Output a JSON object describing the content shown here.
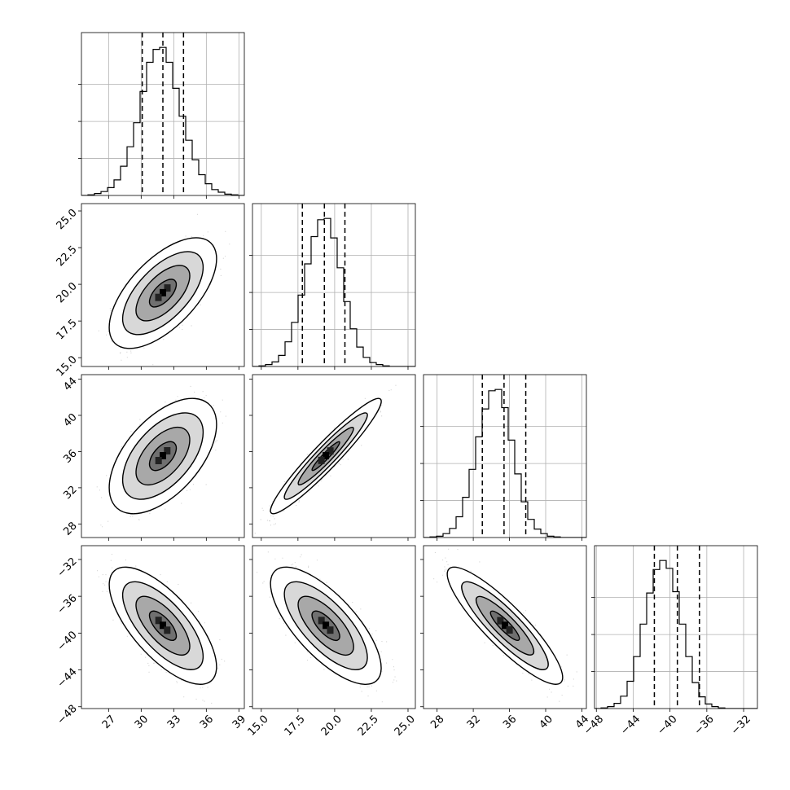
{
  "chart_data": {
    "type": "corner",
    "grid": true,
    "parameters": [
      {
        "ticks": [
          27,
          30,
          33,
          36,
          39
        ],
        "tick_labels": [
          "27",
          "30",
          "33",
          "36",
          "39"
        ],
        "range": [
          24.5,
          39.5
        ],
        "quantiles": [
          30.1,
          32.0,
          33.9
        ]
      },
      {
        "ticks": [
          15.0,
          17.5,
          20.0,
          22.5,
          25.0
        ],
        "tick_labels": [
          "15.0",
          "17.5",
          "20.0",
          "22.5",
          "25.0"
        ],
        "range": [
          14.4,
          25.5
        ],
        "quantiles": [
          17.8,
          19.3,
          20.7
        ]
      },
      {
        "ticks": [
          28,
          32,
          36,
          40,
          44
        ],
        "tick_labels": [
          "28",
          "32",
          "36",
          "40",
          "44"
        ],
        "range": [
          26.5,
          44.5
        ],
        "quantiles": [
          33.0,
          35.4,
          37.8
        ]
      },
      {
        "ticks": [
          -48,
          -44,
          -40,
          -36,
          -32
        ],
        "tick_labels": [
          "−48",
          "−44",
          "−40",
          "−36",
          "−32"
        ],
        "range": [
          -48.2,
          -30.5
        ],
        "quantiles": [
          -41.7,
          -39.2,
          -36.8
        ]
      }
    ],
    "histograms": [
      {
        "edges": [
          24.5,
          39.5
        ],
        "counts": [
          0,
          1,
          3,
          6,
          12,
          24,
          45,
          75,
          112,
          160,
          205,
          225,
          228,
          205,
          165,
          122,
          85,
          55,
          32,
          18,
          9,
          5,
          2,
          1,
          0
        ]
      },
      {
        "edges": [
          14.4,
          25.5
        ],
        "counts": [
          0,
          1,
          3,
          7,
          17,
          38,
          68,
          110,
          158,
          200,
          226,
          228,
          198,
          152,
          100,
          58,
          30,
          14,
          6,
          3,
          1,
          0,
          0,
          0,
          0
        ]
      },
      {
        "edges": [
          26.5,
          44.5
        ],
        "counts": [
          0,
          1,
          2,
          6,
          14,
          32,
          62,
          105,
          155,
          198,
          226,
          228,
          200,
          150,
          98,
          55,
          28,
          13,
          6,
          2,
          1,
          0,
          0,
          0,
          0
        ]
      },
      {
        "edges": [
          -48.2,
          -30.5
        ],
        "counts": [
          0,
          1,
          3,
          8,
          19,
          42,
          80,
          130,
          178,
          214,
          228,
          216,
          180,
          130,
          80,
          40,
          18,
          7,
          3,
          1,
          0,
          0,
          0,
          0,
          0
        ]
      }
    ],
    "means": [
      32.0,
      19.4,
      35.5,
      -39.2
    ],
    "sigmas": [
      1.9,
      1.45,
      2.45,
      2.45
    ],
    "correlations": [
      [
        1,
        0.62,
        0.55,
        -0.7
      ],
      [
        0.62,
        1,
        0.95,
        -0.72
      ],
      [
        0.55,
        0.95,
        1,
        -0.88
      ],
      [
        -0.7,
        -0.72,
        -0.88,
        1
      ]
    ],
    "contour_levels_sigma": [
      0.5,
      1.0,
      1.5,
      2.0
    ]
  }
}
